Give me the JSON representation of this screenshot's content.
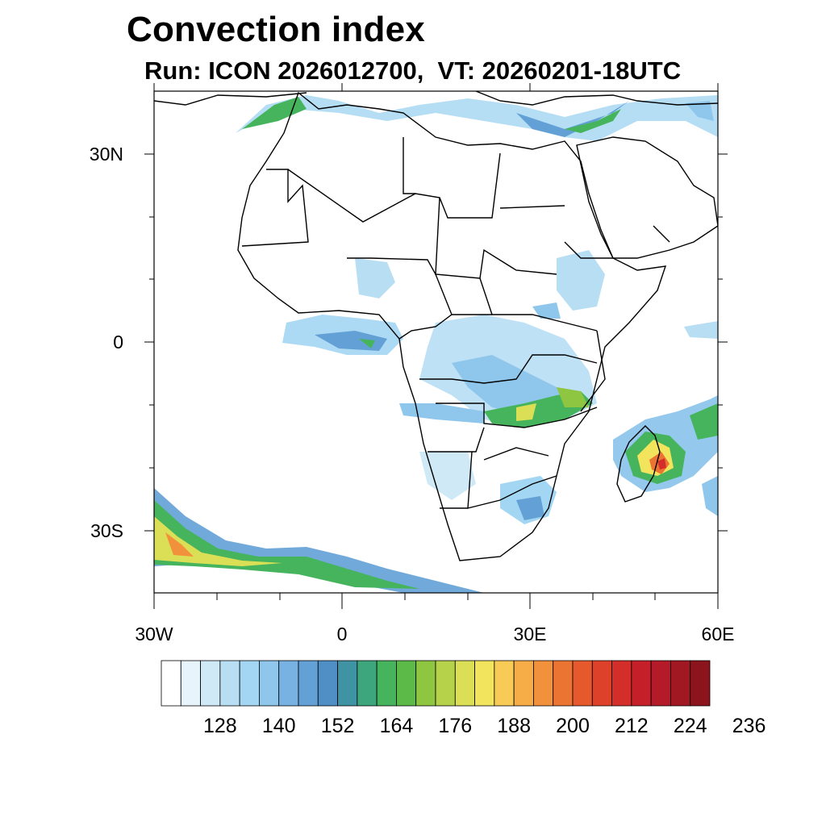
{
  "title": "Convection index",
  "subtitle": "Run: ICON 2026012700,  VT: 20260201-18UTC",
  "axes": {
    "lat_labels": [
      "30N",
      "0",
      "30S"
    ],
    "lon_labels": [
      "30W",
      "0",
      "30E",
      "60E"
    ]
  },
  "colorbar": {
    "labels": [
      "128",
      "140",
      "152",
      "164",
      "176",
      "188",
      "200",
      "212",
      "224",
      "236"
    ],
    "colors": [
      "#ffffff",
      "#e8f4fb",
      "#cfe9f7",
      "#b8def4",
      "#a3d6f3",
      "#8ec6ec",
      "#78b2e3",
      "#62a0d6",
      "#4f8fc6",
      "#3f93a2",
      "#3ea67c",
      "#46b45c",
      "#5cba49",
      "#8ec641",
      "#b5d24a",
      "#dbdf55",
      "#f2e55d",
      "#f7cb55",
      "#f6ad47",
      "#f2913b",
      "#ec7432",
      "#e5592c",
      "#de4129",
      "#d42e2a",
      "#c51f2a",
      "#b51a28",
      "#a11722",
      "#8c141c"
    ]
  },
  "map_features": {
    "regions": [
      "Africa",
      "Madagascar",
      "Arabian Peninsula",
      "Mediterranean",
      "South Atlantic"
    ]
  }
}
